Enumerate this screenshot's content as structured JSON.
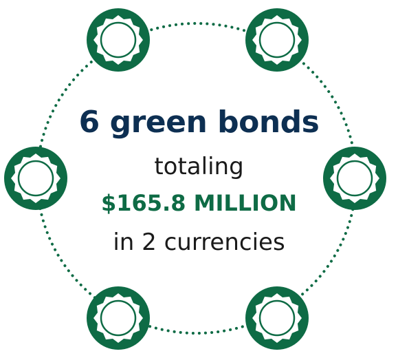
{
  "headline": "6 green bonds",
  "line2": "totaling",
  "amount": "$165.8 MILLION",
  "line4": "in 2 currencies",
  "colors": {
    "green": "#0e6b45",
    "navy": "#0d2f52",
    "text": "#1a1a1a"
  },
  "badge_icon": "seal-icon",
  "badge_count": 6
}
